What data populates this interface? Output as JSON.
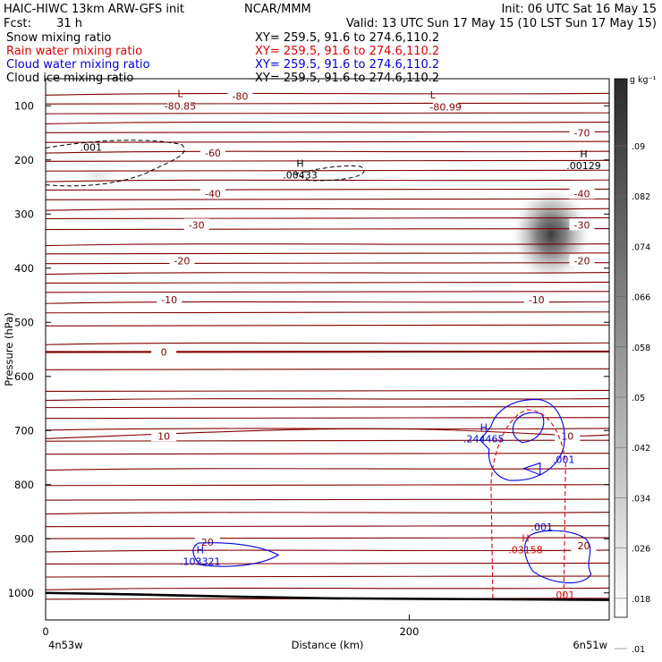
{
  "header": {
    "title_left": "HAIC-HIWC 13km ARW-GFS init",
    "org": "NCAR/MMM",
    "init": "Init: 06 UTC Sat 16 May 15",
    "fcst_label": "Fcst:",
    "fcst_value": "31 h",
    "valid": "Valid: 13 UTC Sun 17 May 15 (10 LST Sun 17 May 15)",
    "fields": [
      {
        "name": "Snow mixing ratio",
        "xy": "XY= 259.5, 91.6 to 274.6,110.2",
        "color": "#000000"
      },
      {
        "name": "Rain water mixing ratio",
        "xy": "XY= 259.5, 91.6 to 274.6,110.2",
        "color": "#e00000"
      },
      {
        "name": "Cloud water mixing ratio",
        "xy": "XY= 259.5, 91.6 to 274.6,110.2",
        "color": "#0000e0"
      },
      {
        "name": "Cloud ice mixing ratio",
        "xy": "XY= 259.5, 91.6 to 274.6,110.2",
        "color": "#000000"
      }
    ]
  },
  "chart_data": {
    "type": "contour",
    "xlabel": "Distance (km)",
    "ylabel": "Pressure (hPa)",
    "xlim": [
      0,
      310
    ],
    "ylim": [
      1050,
      50
    ],
    "x_ticks": [
      "0",
      "200"
    ],
    "x_tick_values": [
      0,
      200
    ],
    "y_ticks": [
      "100",
      "200",
      "300",
      "400",
      "500",
      "600",
      "700",
      "800",
      "900",
      "1000"
    ],
    "y_tick_values": [
      100,
      200,
      300,
      400,
      500,
      600,
      700,
      800,
      900,
      1000
    ],
    "x_endpoint_labels": {
      "left": "4n53w",
      "right": "6n51w"
    },
    "temperature_contour_labels": [
      {
        "text": "-80",
        "x": 107,
        "p": 82
      },
      {
        "text": "-80.85",
        "x": 74,
        "p": 100
      },
      {
        "text": "-80.99",
        "x": 220,
        "p": 102
      },
      {
        "text": "-70",
        "x": 295,
        "p": 150
      },
      {
        "text": "-60",
        "x": 92,
        "p": 187
      },
      {
        "text": "-40",
        "x": 92,
        "p": 262
      },
      {
        "text": "-40",
        "x": 295,
        "p": 262
      },
      {
        "text": "-30",
        "x": 83,
        "p": 320
      },
      {
        "text": "-30",
        "x": 295,
        "p": 320
      },
      {
        "text": "-20",
        "x": 75,
        "p": 386
      },
      {
        "text": "-20",
        "x": 295,
        "p": 386
      },
      {
        "text": "-10",
        "x": 68,
        "p": 458
      },
      {
        "text": "-10",
        "x": 270,
        "p": 458
      },
      {
        "text": "0",
        "x": 65,
        "p": 555
      },
      {
        "text": "10",
        "x": 65,
        "p": 710
      },
      {
        "text": "10",
        "x": 287,
        "p": 710
      },
      {
        "text": "20",
        "x": 89,
        "p": 906
      },
      {
        "text": "20",
        "x": 296,
        "p": 913
      }
    ],
    "low_markers": [
      {
        "letter": "L",
        "x": 74,
        "p": 84
      },
      {
        "letter": "L",
        "x": 213,
        "p": 86
      }
    ],
    "high_markers": [
      {
        "letter": "H",
        "value": ".00433",
        "x": 140,
        "p": 218,
        "color": "#000000"
      },
      {
        "letter": "H",
        "value": ".00129",
        "x": 296,
        "p": 200,
        "color": "#000000"
      },
      {
        "letter": "H",
        "value": ".244465",
        "x": 241,
        "p": 705,
        "color": "#0000e0"
      },
      {
        "letter": "H",
        "value": ".103321",
        "x": 85,
        "p": 932,
        "color": "#0000e0"
      },
      {
        "letter": "H",
        "value": ".03158",
        "x": 264,
        "p": 910,
        "color": "#e00000"
      }
    ],
    "contour_value_labels": [
      {
        "text": ".001",
        "x": 25,
        "p": 183,
        "color": "#000000"
      },
      {
        "text": ".001",
        "x": 285,
        "p": 760,
        "color": "#0000e0"
      },
      {
        "text": ".001",
        "x": 273,
        "p": 885,
        "color": "#0000e0"
      },
      {
        "text": ".001",
        "x": 285,
        "p": 1010,
        "color": "#e00000"
      }
    ],
    "colorbar": {
      "unit": "g kg⁻¹",
      "tick_labels": [
        ".09",
        ".082",
        ".074",
        ".066",
        ".058",
        ".05",
        ".042",
        ".034",
        ".026",
        ".018",
        ".01"
      ],
      "tick_values": [
        0.09,
        0.082,
        0.074,
        0.066,
        0.058,
        0.05,
        0.042,
        0.034,
        0.026,
        0.018,
        0.01
      ]
    },
    "terrain_surface_hpa": [
      1000,
      1003,
      1007,
      1010,
      1011,
      1012,
      1013
    ]
  },
  "colors": {
    "temperature": "#800000",
    "cloud_water": "#0000e0",
    "rain_water": "#e00000",
    "axis": "#000000"
  }
}
